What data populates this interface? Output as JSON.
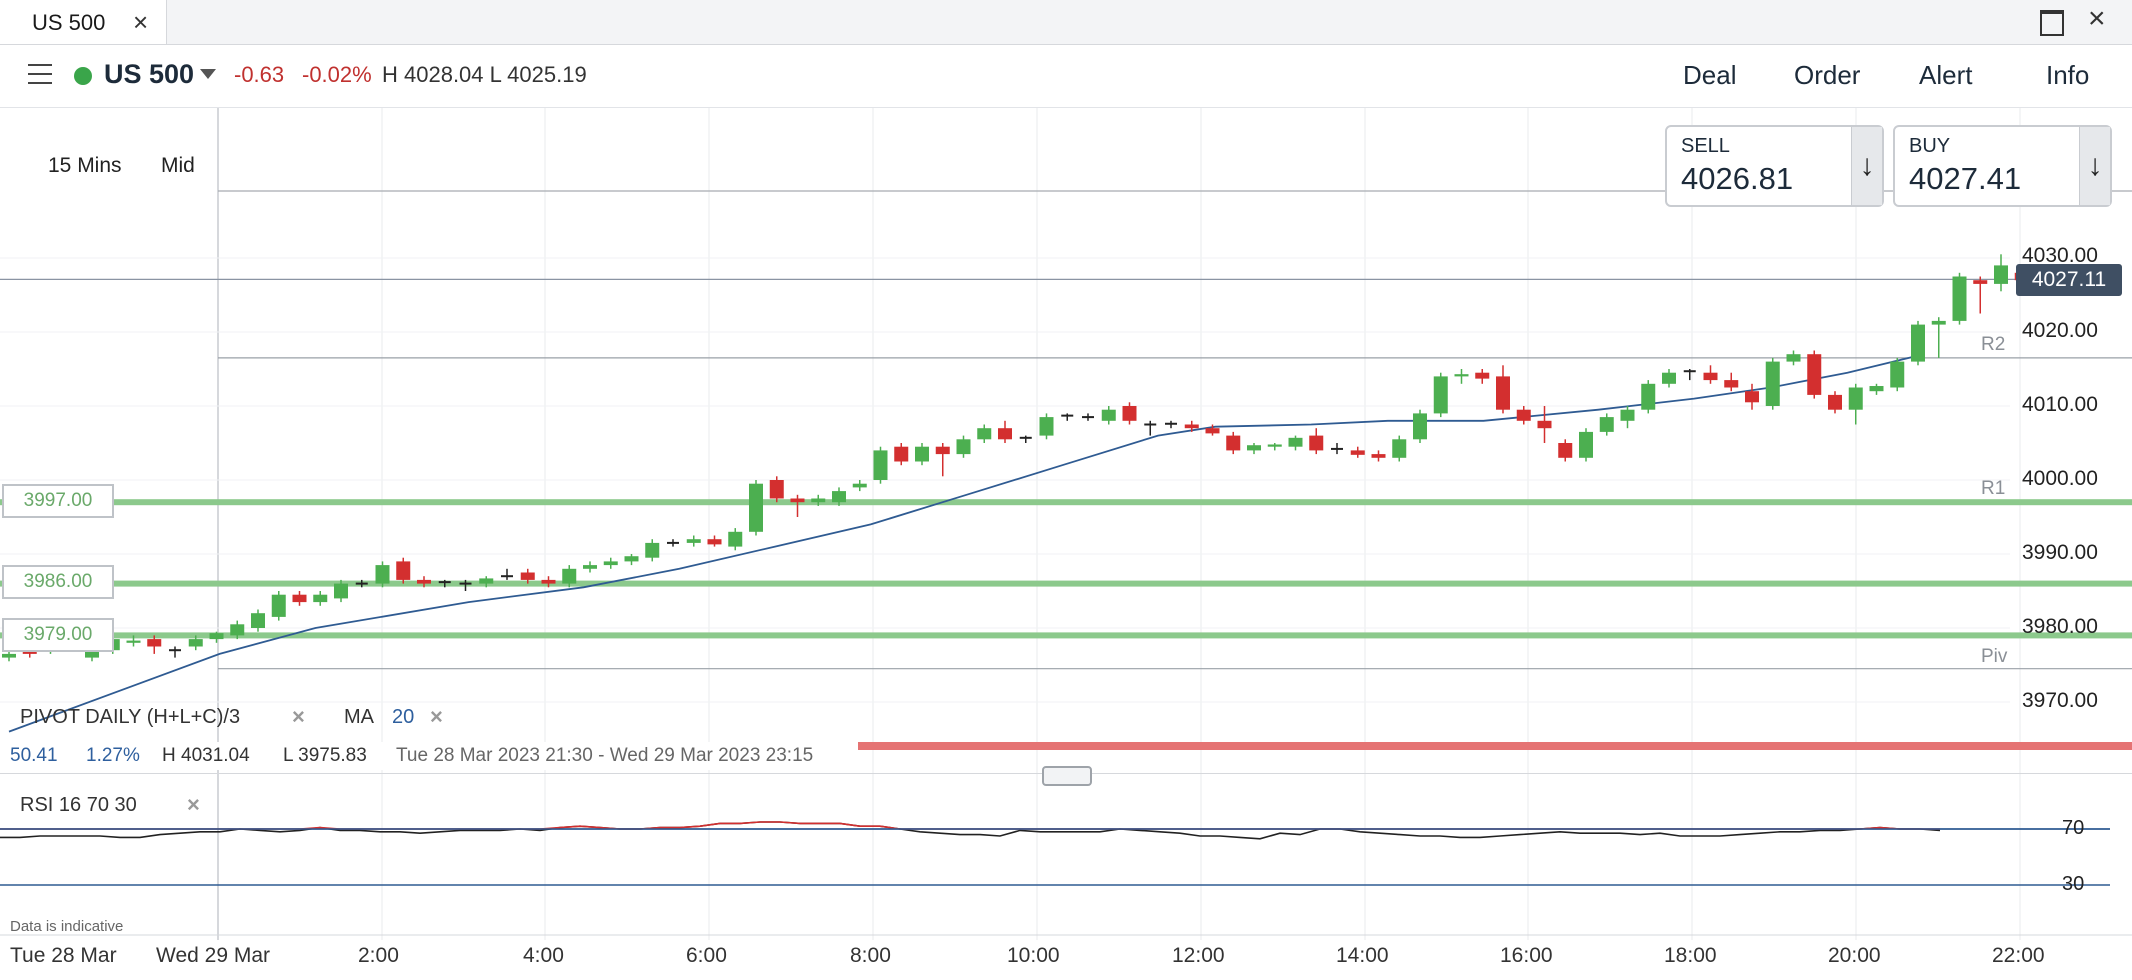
{
  "window": {
    "tab_title": "US 500"
  },
  "header": {
    "instrument": "US 500",
    "change": "-0.63",
    "change_pct": "-0.02%",
    "high_low": "H 4028.04  L 4025.19",
    "nav": [
      "Deal",
      "Order",
      "Alert",
      "Info"
    ]
  },
  "tickets": {
    "sell_label": "SELL",
    "sell_price": "4026.81",
    "buy_label": "BUY",
    "buy_price": "4027.41"
  },
  "timeframe": "15 Mins",
  "price_mode": "Mid",
  "price_tag": "4027.11",
  "level_boxes": [
    "3997.00",
    "3986.00",
    "3979.00"
  ],
  "legend": {
    "pivot": "PIVOT   DAILY   (H+L+C)/3",
    "ma": "MA",
    "ma_value": "20",
    "stats_change": "50.41",
    "stats_pct": "1.27%",
    "stats_high": "H 4031.04",
    "stats_low": "L 3975.83",
    "stats_range": "Tue 28 Mar 2023 21:30 - Wed 29 Mar 2023 23:15",
    "rsi": "RSI   16   70   30",
    "disclaimer": "Data is indicative"
  },
  "chart_data": {
    "type": "candlestick",
    "instrument": "US 500",
    "interval": "15 Mins",
    "ylim": [
      3965,
      4035
    ],
    "y_ticks": [
      "4030.00",
      "4020.00",
      "4010.00",
      "4000.00",
      "3990.00",
      "3980.00",
      "3970.00"
    ],
    "x_ticks": [
      "Tue 28 Mar",
      "Wed 29 Mar",
      "2:00",
      "4:00",
      "6:00",
      "8:00",
      "10:00",
      "12:00",
      "14:00",
      "16:00",
      "18:00",
      "20:00",
      "22:00"
    ],
    "last_price": 4027.11,
    "pivot_levels": [
      {
        "name": "R2",
        "value": 4016.5
      },
      {
        "name": "R1",
        "value": 3997.0
      },
      {
        "name": "Piv",
        "value": 3974.5
      }
    ],
    "horizontal_levels": [
      3997.0,
      3986.0,
      3979.0
    ],
    "candles_ohlc": [
      [
        3976,
        3977,
        3975.5,
        3976.5
      ],
      [
        3977,
        3977.5,
        3976,
        3976.5
      ],
      [
        3977,
        3978,
        3976.5,
        3977.5
      ],
      [
        3977.5,
        3978,
        3977,
        3977.8
      ],
      [
        3976,
        3978,
        3975.5,
        3977.5
      ],
      [
        3977,
        3979,
        3976.5,
        3978.5
      ],
      [
        3978,
        3979,
        3977.5,
        3978.3
      ],
      [
        3978.5,
        3979,
        3976.5,
        3977.5
      ],
      [
        3977,
        3977.5,
        3976,
        3977
      ],
      [
        3977.5,
        3979,
        3977,
        3978.5
      ],
      [
        3978.5,
        3979.5,
        3978,
        3979.3
      ],
      [
        3979,
        3981,
        3978.5,
        3980.5
      ],
      [
        3980,
        3982.5,
        3979.5,
        3982
      ],
      [
        3981.5,
        3985,
        3981,
        3984.5
      ],
      [
        3984.5,
        3985,
        3983,
        3983.5
      ],
      [
        3983.5,
        3985,
        3983,
        3984.5
      ],
      [
        3984,
        3986.5,
        3983.5,
        3986
      ],
      [
        3986,
        3986.5,
        3985.5,
        3986
      ],
      [
        3986,
        3989,
        3985.5,
        3988.5
      ],
      [
        3989,
        3989.5,
        3986,
        3986.5
      ],
      [
        3986.5,
        3987,
        3985.5,
        3986
      ],
      [
        3986,
        3986.5,
        3985.5,
        3986.2
      ],
      [
        3986,
        3986.5,
        3985,
        3985.8
      ],
      [
        3986,
        3987,
        3985.5,
        3986.7
      ],
      [
        3987,
        3988,
        3986.5,
        3987
      ],
      [
        3987.5,
        3988,
        3986,
        3986.5
      ],
      [
        3986.5,
        3987,
        3985.5,
        3986
      ],
      [
        3986,
        3988.5,
        3985.5,
        3988
      ],
      [
        3988,
        3989,
        3987.5,
        3988.5
      ],
      [
        3988.5,
        3989.5,
        3988,
        3989
      ],
      [
        3989,
        3990,
        3988.5,
        3989.7
      ],
      [
        3989.5,
        3992,
        3989,
        3991.5
      ],
      [
        3991.5,
        3992,
        3991,
        3991.5
      ],
      [
        3991.5,
        3992.5,
        3991,
        3992
      ],
      [
        3992,
        3992.5,
        3991,
        3991.3
      ],
      [
        3991,
        3993.5,
        3990.5,
        3993
      ],
      [
        3993,
        4000,
        3992.5,
        3999.5
      ],
      [
        4000,
        4000.5,
        3997,
        3997.5
      ],
      [
        3997.5,
        3998,
        3995,
        3997
      ],
      [
        3997,
        3998,
        3996.5,
        3997.5
      ],
      [
        3997,
        3999,
        3996.5,
        3998.5
      ],
      [
        3999,
        4000,
        3998.5,
        3999.5
      ],
      [
        4000,
        4004.5,
        3999.5,
        4004
      ],
      [
        4004.5,
        4005,
        4002,
        4002.5
      ],
      [
        4002.5,
        4005,
        4002,
        4004.5
      ],
      [
        4004.5,
        4005,
        4000.5,
        4003.5
      ],
      [
        4003.5,
        4006,
        4003,
        4005.5
      ],
      [
        4005.5,
        4007.5,
        4005,
        4007
      ],
      [
        4007,
        4008,
        4005,
        4005.5
      ],
      [
        4005.5,
        4006,
        4005,
        4005.7
      ],
      [
        4006,
        4009,
        4005.5,
        4008.5
      ],
      [
        4008.5,
        4009,
        4008,
        4008.7
      ],
      [
        4008.5,
        4009,
        4008,
        4008.3
      ],
      [
        4008,
        4010,
        4007.5,
        4009.5
      ],
      [
        4010,
        4010.5,
        4007.5,
        4008
      ],
      [
        4007.5,
        4008,
        4006,
        4007.3
      ],
      [
        4007.5,
        4008,
        4007,
        4007.6
      ],
      [
        4007.5,
        4008,
        4006.5,
        4007
      ],
      [
        4007,
        4007.5,
        4006,
        4006.3
      ],
      [
        4006,
        4006.5,
        4003.5,
        4004
      ],
      [
        4004,
        4005,
        4003.5,
        4004.7
      ],
      [
        4004.5,
        4005,
        4004,
        4004.8
      ],
      [
        4004.5,
        4006,
        4004,
        4005.7
      ],
      [
        4006,
        4007,
        4003.5,
        4004
      ],
      [
        4004,
        4005,
        4003.5,
        4004.2
      ],
      [
        4004,
        4004.5,
        4003,
        4003.4
      ],
      [
        4003.5,
        4004,
        4002.5,
        4003
      ],
      [
        4003,
        4006,
        4002.5,
        4005.5
      ],
      [
        4005.5,
        4009.5,
        4005,
        4009
      ],
      [
        4009,
        4014.5,
        4008.5,
        4014
      ],
      [
        4014,
        4015,
        4013,
        4014.3
      ],
      [
        4014.5,
        4015,
        4013,
        4013.7
      ],
      [
        4014,
        4015.5,
        4009,
        4009.5
      ],
      [
        4009.5,
        4010,
        4007.5,
        4008
      ],
      [
        4008,
        4010,
        4005,
        4007
      ],
      [
        4005,
        4005.5,
        4002.5,
        4003
      ],
      [
        4003,
        4007,
        4002.5,
        4006.5
      ],
      [
        4006.5,
        4009,
        4006,
        4008.5
      ],
      [
        4008,
        4010,
        4007,
        4009.5
      ],
      [
        4009.5,
        4013.5,
        4009,
        4013
      ],
      [
        4013,
        4015,
        4012.5,
        4014.5
      ],
      [
        4014.5,
        4015,
        4013.5,
        4014.7
      ],
      [
        4014.5,
        4015.5,
        4013,
        4013.5
      ],
      [
        4013.5,
        4014.5,
        4012,
        4012.5
      ],
      [
        4012,
        4013,
        4009.5,
        4010.5
      ],
      [
        4010,
        4016.5,
        4009.5,
        4016
      ],
      [
        4016,
        4017.5,
        4015.5,
        4017
      ],
      [
        4017,
        4017.5,
        4011,
        4011.5
      ],
      [
        4011.5,
        4012,
        4009,
        4009.5
      ],
      [
        4009.5,
        4013,
        4007.5,
        4012.5
      ],
      [
        4012,
        4013,
        4011.5,
        4012.7
      ],
      [
        4012.5,
        4016.5,
        4012,
        4016
      ],
      [
        4016,
        4021.5,
        4015.5,
        4021
      ],
      [
        4021,
        4022,
        4016.5,
        4021.5
      ],
      [
        4021.5,
        4028,
        4021,
        4027.5
      ],
      [
        4027,
        4027.5,
        4022.5,
        4026.5
      ],
      [
        4026.5,
        4030.5,
        4025.5,
        4029
      ],
      [
        4028,
        4028.5,
        4025.5,
        4027
      ]
    ],
    "ma20": [
      [
        0,
        3966
      ],
      [
        11,
        3976.5
      ],
      [
        16,
        3980
      ],
      [
        24,
        3983.5
      ],
      [
        30,
        3985.5
      ],
      [
        35,
        3988
      ],
      [
        40,
        3991
      ],
      [
        45,
        3994
      ],
      [
        50,
        3998
      ],
      [
        55,
        4002
      ],
      [
        60,
        4006
      ],
      [
        63,
        4007.2
      ],
      [
        68,
        4007.5
      ],
      [
        72,
        4008
      ],
      [
        77,
        4008
      ],
      [
        83,
        4009.5
      ],
      [
        88,
        4011
      ],
      [
        92,
        4012.5
      ],
      [
        96,
        4014.5
      ],
      [
        100,
        4017
      ]
    ],
    "rsi": {
      "levels": [
        70,
        30
      ],
      "values": [
        64,
        64,
        65,
        65,
        65,
        65,
        64,
        64,
        66,
        67,
        68,
        68,
        70,
        69,
        68,
        69,
        71,
        69,
        69,
        68,
        68,
        67,
        68,
        69,
        69,
        69,
        70,
        69,
        71,
        72,
        71,
        70,
        70,
        71,
        71,
        72,
        74,
        74,
        75,
        75,
        74,
        74,
        74,
        72,
        72,
        70,
        68,
        67,
        66,
        66,
        65,
        69,
        68,
        68,
        68,
        68,
        70,
        69,
        68,
        67,
        65,
        65,
        64,
        63,
        67,
        66,
        70,
        70,
        68,
        67,
        66,
        65,
        65,
        64,
        64,
        65,
        66,
        67,
        68,
        67,
        67,
        67,
        66,
        67,
        65,
        65,
        65,
        66,
        67,
        68,
        68,
        69,
        69,
        70,
        71,
        70,
        70,
        69
      ]
    }
  }
}
